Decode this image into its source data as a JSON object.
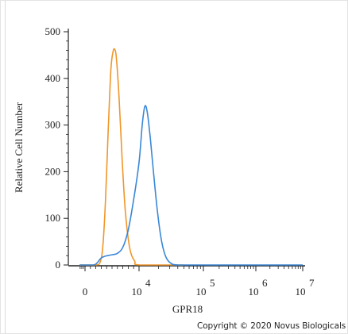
{
  "chart_data": {
    "type": "line",
    "title": "",
    "xlabel": "GPR18",
    "ylabel": "Relative Cell Number",
    "x_scale": "biexponential",
    "ylim": [
      0,
      500
    ],
    "y_ticks": [
      0,
      100,
      200,
      300,
      400,
      500
    ],
    "x_tick_labels": [
      {
        "base": "0",
        "exp": ""
      },
      {
        "base": "10",
        "exp": "4"
      },
      {
        "base": "10",
        "exp": "5"
      },
      {
        "base": "10",
        "exp": "6"
      },
      {
        "base": "10",
        "exp": "7"
      }
    ],
    "series": [
      {
        "color": "#f0962a",
        "points": [
          [
            -1000,
            0
          ],
          [
            2000,
            0
          ],
          [
            2800,
            6
          ],
          [
            3300,
            40
          ],
          [
            3800,
            140
          ],
          [
            4300,
            290
          ],
          [
            4800,
            420
          ],
          [
            5200,
            458
          ],
          [
            5500,
            462
          ],
          [
            5800,
            445
          ],
          [
            6300,
            360
          ],
          [
            6900,
            220
          ],
          [
            7500,
            110
          ],
          [
            8300,
            35
          ],
          [
            9200,
            8
          ],
          [
            10200,
            0
          ],
          [
            50000,
            0
          ]
        ]
      },
      {
        "color": "#3a87d6",
        "points": [
          [
            -1000,
            0
          ],
          [
            1500,
            0
          ],
          [
            2200,
            4
          ],
          [
            2900,
            14
          ],
          [
            3500,
            18
          ],
          [
            4200,
            20
          ],
          [
            5000,
            22
          ],
          [
            6000,
            25
          ],
          [
            7000,
            38
          ],
          [
            8000,
            75
          ],
          [
            9000,
            140
          ],
          [
            10000,
            220
          ],
          [
            11200,
            300
          ],
          [
            12300,
            340
          ],
          [
            13400,
            328
          ],
          [
            15000,
            270
          ],
          [
            17000,
            190
          ],
          [
            19500,
            110
          ],
          [
            22500,
            50
          ],
          [
            26000,
            18
          ],
          [
            31000,
            4
          ],
          [
            40000,
            0
          ],
          [
            100000,
            0
          ],
          [
            10000000,
            0
          ]
        ]
      }
    ]
  },
  "footer": {
    "copyright": "Copyright © 2020 Novus Biologicals"
  }
}
